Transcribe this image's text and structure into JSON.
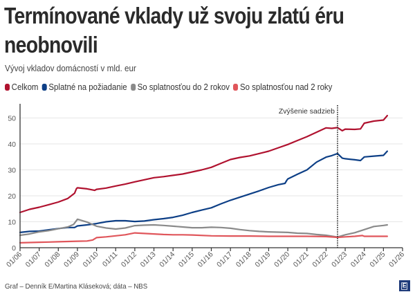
{
  "header": {
    "title_line1": "Termínované vklady už svoju zlatú éru",
    "title_line2": "neobnovili",
    "subtitle": "Vývoj vkladov domácností v mld. eur"
  },
  "footer": {
    "credit": "Graf – Denník E/Martina Kláseková; dáta – NBS",
    "logo_letter": "E"
  },
  "chart_data": {
    "type": "line",
    "title": "Termínované vklady už svoju zlatú éru neobnovili",
    "subtitle": "Vývoj vkladov domácností v mld. eur",
    "xlabel": "",
    "ylabel": "",
    "xlim": [
      2006.0,
      2026.0
    ],
    "ylim": [
      0,
      55
    ],
    "grid": true,
    "legend_position": "top-left",
    "y_ticks": [
      0,
      10,
      20,
      30,
      40,
      50
    ],
    "y_tick_labels": [
      "0",
      "10",
      "20",
      "30",
      "40",
      "50"
    ],
    "x_ticks": [
      2006,
      2007,
      2008,
      2009,
      2010,
      2011,
      2012,
      2013,
      2014,
      2015,
      2016,
      2017,
      2018,
      2019,
      2020,
      2021,
      2022,
      2023,
      2024,
      2025,
      2026
    ],
    "x_tick_labels": [
      "01/06",
      "01/07",
      "01/08",
      "01/09",
      "01/10",
      "01/11",
      "01/12",
      "01/13",
      "01/14",
      "01/15",
      "01/16",
      "01/17",
      "01/18",
      "01/19",
      "01/20",
      "01/21",
      "01/22",
      "01/23",
      "01/24",
      "01/25",
      "01/26"
    ],
    "annotation": {
      "label": "Zvýšenie sadzieb",
      "x": 2022.6
    },
    "series": [
      {
        "name": "Celkom",
        "color": "#b0122f",
        "x": [
          2006.0,
          2006.5,
          2007.0,
          2007.5,
          2008.0,
          2008.5,
          2008.85,
          2008.95,
          2009.0,
          2009.5,
          2009.9,
          2010.0,
          2010.5,
          2011.0,
          2011.5,
          2012.0,
          2012.5,
          2013.0,
          2013.5,
          2014.0,
          2014.5,
          2015.0,
          2015.5,
          2016.0,
          2016.5,
          2017.0,
          2017.5,
          2018.0,
          2018.5,
          2019.0,
          2019.5,
          2020.0,
          2020.5,
          2021.0,
          2021.5,
          2022.0,
          2022.3,
          2022.6,
          2022.85,
          2023.0,
          2023.5,
          2023.8,
          2024.0,
          2024.5,
          2025.0,
          2025.2
        ],
        "values": [
          13.6,
          14.8,
          15.6,
          16.6,
          17.6,
          19.0,
          21.0,
          22.8,
          23.1,
          22.7,
          22.1,
          22.5,
          23.0,
          23.8,
          24.5,
          25.4,
          26.2,
          27.0,
          27.4,
          27.9,
          28.4,
          29.2,
          30.0,
          31.0,
          32.5,
          34.0,
          34.8,
          35.4,
          36.3,
          37.2,
          38.5,
          39.8,
          41.3,
          42.8,
          44.5,
          46.2,
          46.0,
          46.3,
          45.1,
          45.7,
          45.6,
          45.8,
          48.0,
          48.8,
          49.2,
          50.9
        ]
      },
      {
        "name": "Splatné na požiadanie",
        "color": "#0d3f86",
        "x": [
          2006.0,
          2006.5,
          2007.0,
          2007.5,
          2008.0,
          2008.5,
          2008.85,
          2009.0,
          2009.5,
          2010.0,
          2010.5,
          2011.0,
          2011.5,
          2012.0,
          2012.5,
          2013.0,
          2013.5,
          2014.0,
          2014.5,
          2015.0,
          2015.5,
          2016.0,
          2016.5,
          2017.0,
          2017.5,
          2018.0,
          2018.5,
          2019.0,
          2019.5,
          2019.85,
          2019.95,
          2020.0,
          2020.5,
          2021.0,
          2021.5,
          2022.0,
          2022.3,
          2022.6,
          2022.85,
          2023.0,
          2023.5,
          2023.8,
          2024.0,
          2024.5,
          2025.0,
          2025.2
        ],
        "values": [
          5.9,
          6.3,
          6.4,
          6.9,
          7.4,
          7.8,
          7.8,
          8.4,
          8.8,
          9.3,
          10.0,
          10.4,
          10.4,
          10.1,
          10.3,
          10.8,
          11.2,
          11.7,
          12.5,
          13.6,
          14.5,
          15.4,
          16.9,
          18.3,
          19.5,
          20.7,
          21.9,
          23.2,
          24.3,
          24.8,
          26.0,
          26.5,
          28.3,
          30.0,
          33.0,
          34.9,
          35.5,
          36.3,
          34.5,
          34.3,
          33.9,
          33.6,
          35.0,
          35.3,
          35.6,
          37.2
        ]
      },
      {
        "name": "So splatnosťou do 2 rokov",
        "color": "#8a8a8a",
        "x": [
          2006.0,
          2006.5,
          2007.0,
          2007.5,
          2008.0,
          2008.5,
          2008.8,
          2009.0,
          2009.5,
          2010.0,
          2010.5,
          2011.0,
          2011.5,
          2012.0,
          2012.5,
          2013.0,
          2013.5,
          2014.0,
          2014.5,
          2015.0,
          2015.5,
          2016.0,
          2016.5,
          2017.0,
          2017.5,
          2018.0,
          2018.5,
          2019.0,
          2019.5,
          2020.0,
          2020.5,
          2021.0,
          2021.5,
          2022.0,
          2022.6,
          2023.0,
          2023.5,
          2024.0,
          2024.5,
          2025.0,
          2025.2
        ],
        "values": [
          4.8,
          5.3,
          6.1,
          6.6,
          7.3,
          8.0,
          9.0,
          11.0,
          9.9,
          8.3,
          7.6,
          7.2,
          7.6,
          8.5,
          8.7,
          8.8,
          8.6,
          8.3,
          8.0,
          7.7,
          7.7,
          7.9,
          7.8,
          7.5,
          7.0,
          6.6,
          6.3,
          6.1,
          6.0,
          5.9,
          5.6,
          5.5,
          5.1,
          4.8,
          4.1,
          5.0,
          5.8,
          7.0,
          8.2,
          8.6,
          8.8
        ]
      },
      {
        "name": "So splatnosťou nad 2 roky",
        "color": "#e0565b",
        "x": [
          2006.0,
          2006.5,
          2007.0,
          2007.5,
          2008.0,
          2008.5,
          2009.0,
          2009.5,
          2009.8,
          2010.0,
          2010.5,
          2011.0,
          2011.5,
          2012.0,
          2012.5,
          2013.0,
          2013.5,
          2014.0,
          2014.5,
          2015.0,
          2016.0,
          2017.0,
          2018.0,
          2019.0,
          2020.0,
          2021.0,
          2022.0,
          2022.6,
          2023.0,
          2023.5,
          2023.9,
          2024.0,
          2024.5,
          2025.0,
          2025.2
        ],
        "values": [
          1.9,
          2.0,
          2.1,
          2.2,
          2.3,
          2.4,
          2.5,
          2.6,
          3.0,
          3.9,
          4.2,
          4.6,
          5.0,
          5.7,
          5.5,
          5.3,
          5.1,
          5.0,
          5.0,
          4.9,
          4.6,
          4.5,
          4.5,
          4.4,
          4.4,
          4.4,
          4.3,
          4.0,
          4.2,
          4.4,
          4.7,
          4.4,
          4.4,
          4.4,
          4.4
        ]
      }
    ]
  }
}
